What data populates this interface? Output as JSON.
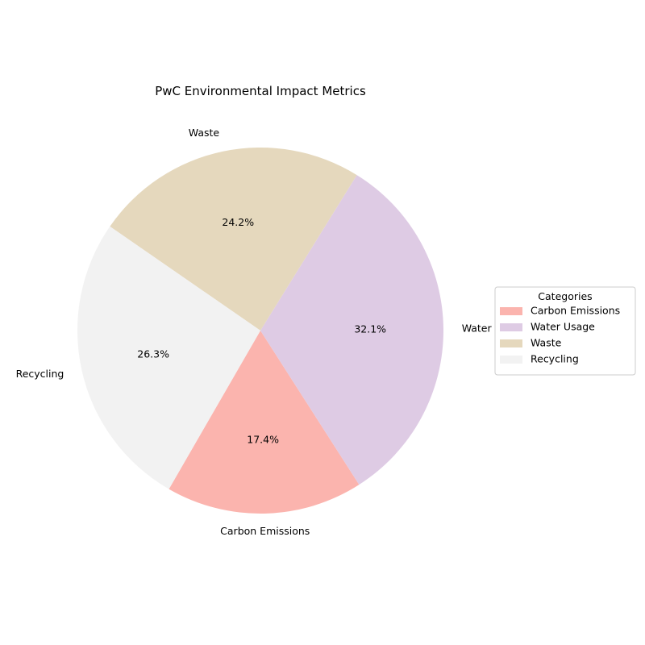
{
  "chart_data": {
    "type": "pie",
    "title": "PwC Environmental Impact Metrics",
    "slices": [
      {
        "label": "Carbon Emissions",
        "percent": 17.4,
        "pct_text": "17.4%",
        "color": "#fbb4ae"
      },
      {
        "label": "Water Usage",
        "percent": 32.1,
        "pct_text": "32.1%",
        "color": "#decbe4"
      },
      {
        "label": "Waste",
        "percent": 24.2,
        "pct_text": "24.2%",
        "color": "#e5d8bd"
      },
      {
        "label": "Recycling",
        "percent": 26.3,
        "pct_text": "26.3%",
        "color": "#f2f2f2"
      }
    ],
    "start_angle_deg": 240,
    "direction": "counterclockwise",
    "legend": {
      "title": "Categories",
      "placement": "right",
      "entries": [
        "Carbon Emissions",
        "Water Usage",
        "Waste",
        "Recycling"
      ]
    }
  }
}
